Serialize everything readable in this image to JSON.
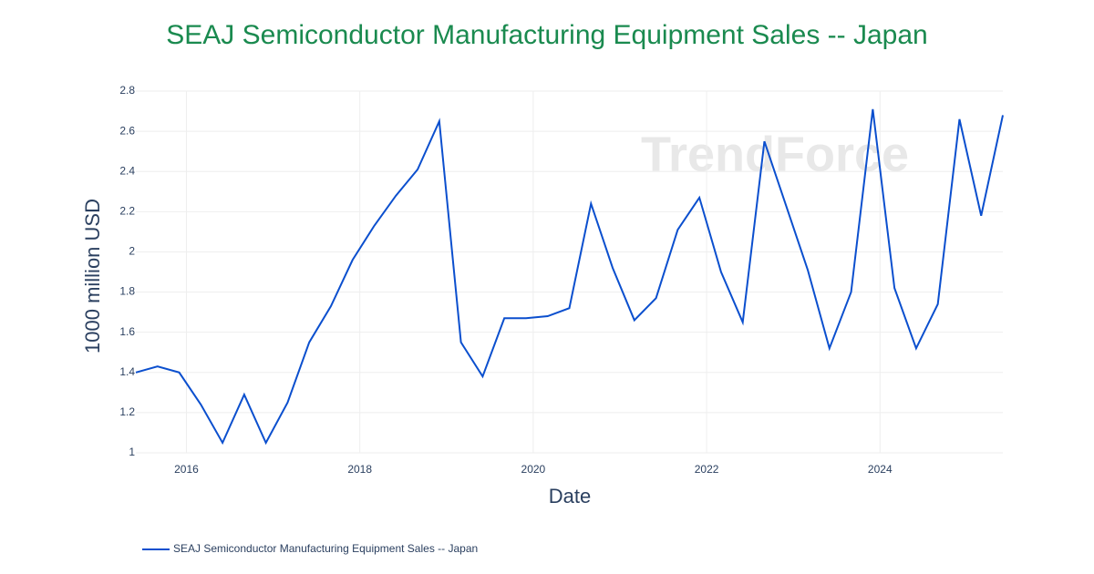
{
  "chart_data": {
    "type": "line",
    "title": "SEAJ Semiconductor Manufacturing Equipment Sales -- Japan",
    "x_label": "Date",
    "y_label": "1000 million USD",
    "watermark": "TrendForce",
    "x": [
      "2015-06",
      "2015-09",
      "2015-12",
      "2016-03",
      "2016-06",
      "2016-09",
      "2016-12",
      "2017-03",
      "2017-06",
      "2017-09",
      "2017-12",
      "2018-03",
      "2018-06",
      "2018-09",
      "2018-12",
      "2019-03",
      "2019-06",
      "2019-09",
      "2019-12",
      "2020-03",
      "2020-06",
      "2020-09",
      "2020-12",
      "2021-03",
      "2021-06",
      "2021-09",
      "2021-12",
      "2022-03",
      "2022-06",
      "2022-09",
      "2022-12",
      "2023-03",
      "2023-06",
      "2023-09",
      "2023-12",
      "2024-03",
      "2024-06",
      "2024-09",
      "2024-12",
      "2025-03",
      "2025-06"
    ],
    "series": [
      {
        "name": "SEAJ Semiconductor Manufacturing Equipment Sales -- Japan",
        "color": "#0b4fce",
        "values": [
          1.4,
          1.43,
          1.4,
          1.24,
          1.05,
          1.29,
          1.05,
          1.25,
          1.55,
          1.73,
          1.96,
          2.13,
          2.28,
          2.41,
          2.65,
          1.55,
          1.38,
          1.67,
          1.67,
          1.68,
          1.72,
          2.24,
          1.92,
          1.66,
          1.77,
          2.11,
          2.27,
          1.9,
          1.65,
          2.55,
          2.23,
          1.91,
          1.52,
          1.8,
          2.71,
          1.82,
          1.52,
          1.74,
          2.66,
          2.18,
          2.68
        ]
      }
    ],
    "xlim": [
      "2015-06",
      "2025-06"
    ],
    "xticks": [
      "2016",
      "2018",
      "2020",
      "2022",
      "2024"
    ],
    "ylim": [
      1,
      2.8
    ],
    "yticks": [
      1,
      1.2,
      1.4,
      1.6,
      1.8,
      2,
      2.2,
      2.4,
      2.6,
      2.8
    ],
    "grid": true,
    "legend": "bottom-left"
  }
}
